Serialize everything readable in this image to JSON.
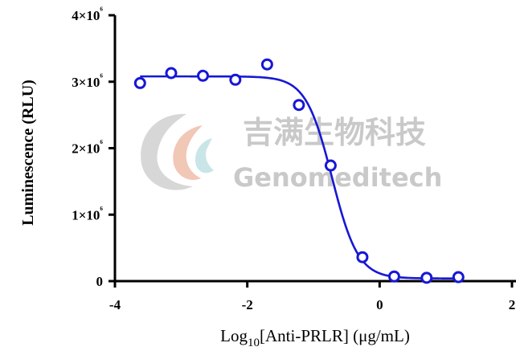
{
  "chart_data": {
    "type": "scatter",
    "xlabel_prefix": "Log",
    "xlabel_sub": "10",
    "xlabel_suffix": "[Anti-PRLR] (μg/mL)",
    "ylabel": "Luminescence (RLU)",
    "xlim": [
      -4,
      2
    ],
    "ylim": [
      0,
      4000000
    ],
    "xticks": [
      -4,
      -2,
      0,
      2
    ],
    "xtick_labels": [
      "-4",
      "-2",
      "0",
      "2"
    ],
    "yticks": [
      0,
      1000000,
      2000000,
      3000000,
      4000000
    ],
    "ytick_labels": [
      "0",
      "1×10⁶",
      "2×10⁶",
      "3×10⁶",
      "4×10⁶"
    ],
    "grid": false,
    "series": [
      {
        "points": [
          {
            "x": -3.62,
            "y": 2980000
          },
          {
            "x": -3.15,
            "y": 3130000
          },
          {
            "x": -2.67,
            "y": 3090000
          },
          {
            "x": -2.18,
            "y": 3030000
          },
          {
            "x": -1.7,
            "y": 3260000
          },
          {
            "x": -1.22,
            "y": 2650000
          },
          {
            "x": -0.74,
            "y": 1740000
          },
          {
            "x": -0.26,
            "y": 360000
          },
          {
            "x": 0.22,
            "y": 70000
          },
          {
            "x": 0.71,
            "y": 50000
          },
          {
            "x": 1.19,
            "y": 60000
          }
        ],
        "fit": {
          "model": "4PL",
          "top": 3080000,
          "bottom": 40000,
          "log_ic50": -0.72,
          "hill": -2.2
        }
      }
    ],
    "colors": {
      "series": "#1717d6",
      "axis": "#000000"
    }
  },
  "watermark": {
    "cn": "吉满生物科技",
    "en": "Genomeditech"
  }
}
